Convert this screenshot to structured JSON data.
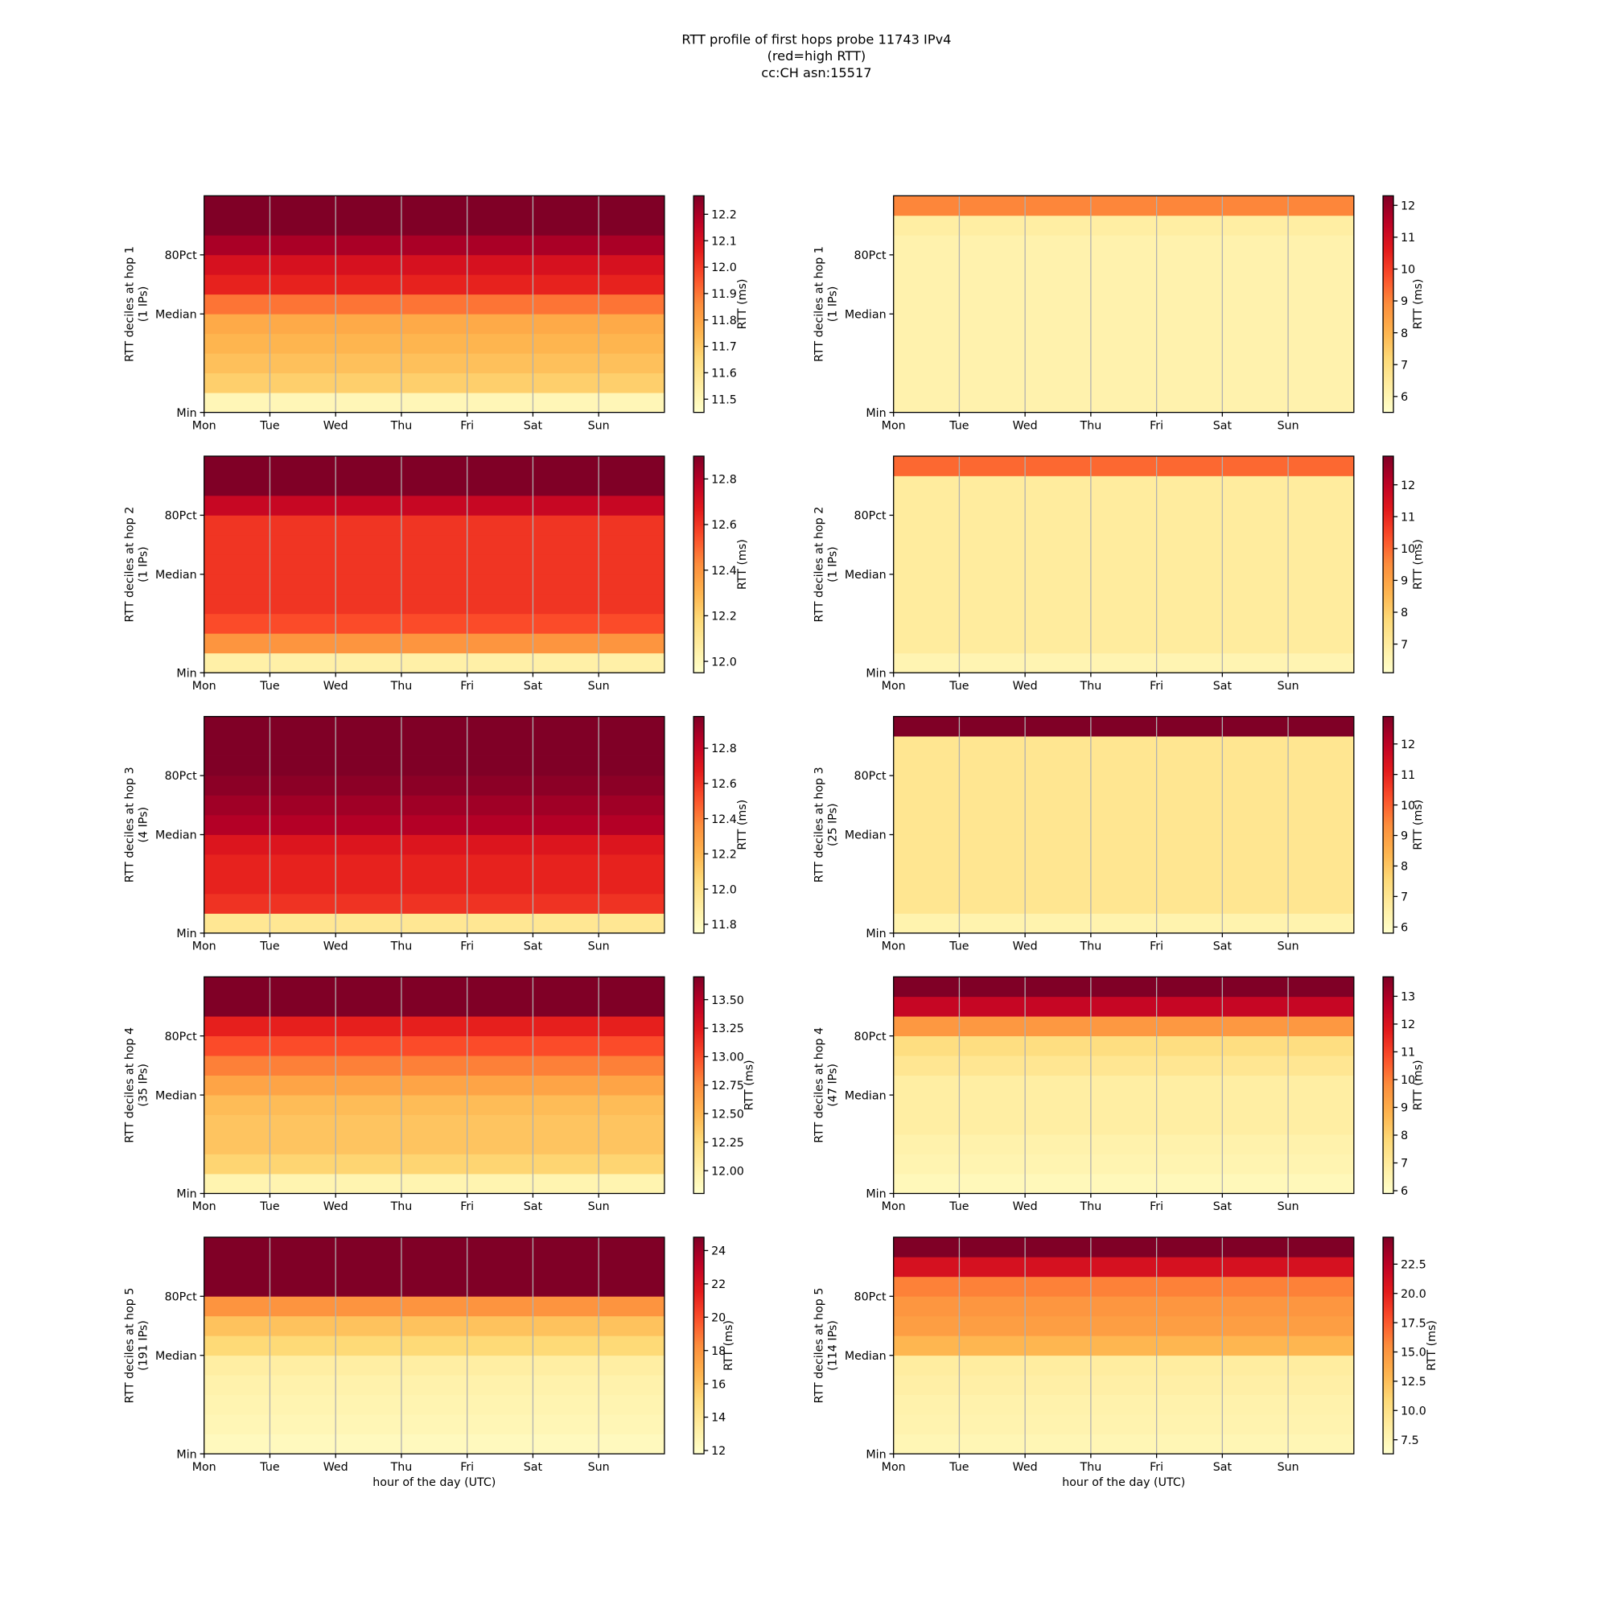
{
  "title": [
    "RTT profile of first hops probe 11743 IPv4",
    "(red=high RTT)",
    "cc:CH asn:15517"
  ],
  "chart_data": [
    {
      "type": "heatmap",
      "ylabel": [
        "RTT deciles at hop 1",
        "(1 IPs)"
      ],
      "colorbar_label": "RTT (ms)",
      "colormap": "YlOrRd",
      "values": [
        11.5,
        11.68,
        11.72,
        11.75,
        11.78,
        11.9,
        12.05,
        12.1,
        12.2,
        12.3,
        12.3
      ],
      "clim": [
        11.45,
        12.27
      ],
      "cticks": [
        11.5,
        11.6,
        11.7,
        11.8,
        11.9,
        {
          "value": 12,
          "label": "12.0"
        },
        12.1,
        12.2
      ],
      "xlim": [
        0,
        7
      ],
      "xticks": [
        {
          "value": 0,
          "label": "Mon"
        },
        {
          "value": 1,
          "label": "Tue"
        },
        {
          "value": 2,
          "label": "Wed"
        },
        {
          "value": 3,
          "label": "Thu"
        },
        {
          "value": 4,
          "label": "Fri"
        },
        {
          "value": 5,
          "label": "Sat"
        },
        {
          "value": 6,
          "label": "Sun"
        }
      ],
      "ylim": [
        0,
        11
      ],
      "yticks": [
        {
          "value": 0,
          "label": "Min"
        },
        {
          "value": 5,
          "label": "Median"
        },
        {
          "value": 8,
          "label": "80Pct"
        }
      ],
      "grid": "x"
    },
    {
      "type": "heatmap",
      "ylabel": [
        "RTT deciles at hop 2",
        "(1 IPs)"
      ],
      "colorbar_label": "RTT (ms)",
      "colormap": "YlOrRd",
      "values": [
        12.05,
        12.4,
        12.55,
        12.6,
        12.6,
        12.6,
        12.6,
        12.6,
        12.75,
        12.95,
        12.95
      ],
      "clim": [
        11.95,
        12.9
      ],
      "cticks": [
        {
          "value": 12,
          "label": "12.0"
        },
        12.2,
        12.4,
        12.6,
        12.8
      ],
      "xlim": [
        0,
        7
      ],
      "xticks": [
        {
          "value": 0,
          "label": "Mon"
        },
        {
          "value": 1,
          "label": "Tue"
        },
        {
          "value": 2,
          "label": "Wed"
        },
        {
          "value": 3,
          "label": "Thu"
        },
        {
          "value": 4,
          "label": "Fri"
        },
        {
          "value": 5,
          "label": "Sat"
        },
        {
          "value": 6,
          "label": "Sun"
        }
      ],
      "ylim": [
        0,
        11
      ],
      "yticks": [
        {
          "value": 0,
          "label": "Min"
        },
        {
          "value": 5,
          "label": "Median"
        },
        {
          "value": 8,
          "label": "80Pct"
        }
      ],
      "grid": "x"
    },
    {
      "type": "heatmap",
      "ylabel": [
        "RTT deciles at hop 3",
        "(4 IPs)"
      ],
      "colorbar_label": "RTT (ms)",
      "colormap": "YlOrRd",
      "values": [
        11.95,
        12.6,
        12.65,
        12.65,
        12.7,
        12.85,
        12.9,
        12.95,
        13,
        13,
        13
      ],
      "clim": [
        11.75,
        12.98
      ],
      "cticks": [
        11.8,
        {
          "value": 12,
          "label": "12.0"
        },
        12.2,
        12.4,
        12.6,
        12.8
      ],
      "xlim": [
        0,
        7
      ],
      "xticks": [
        {
          "value": 0,
          "label": "Mon"
        },
        {
          "value": 1,
          "label": "Tue"
        },
        {
          "value": 2,
          "label": "Wed"
        },
        {
          "value": 3,
          "label": "Thu"
        },
        {
          "value": 4,
          "label": "Fri"
        },
        {
          "value": 5,
          "label": "Sat"
        },
        {
          "value": 6,
          "label": "Sun"
        }
      ],
      "ylim": [
        0,
        11
      ],
      "yticks": [
        {
          "value": 0,
          "label": "Min"
        },
        {
          "value": 5,
          "label": "Median"
        },
        {
          "value": 8,
          "label": "80Pct"
        }
      ],
      "grid": "x"
    },
    {
      "type": "heatmap",
      "ylabel": [
        "RTT deciles at hop 4",
        "(35 IPs)"
      ],
      "colorbar_label": "RTT (ms)",
      "colormap": "YlOrRd",
      "values": [
        11.95,
        12.3,
        12.4,
        12.4,
        12.45,
        12.6,
        12.8,
        13.0,
        13.2,
        13.7,
        13.7
      ],
      "clim": [
        11.8,
        13.7
      ],
      "cticks": [
        {
          "value": 12,
          "label": "12.00"
        },
        12.25,
        {
          "value": 12.5,
          "label": "12.50"
        },
        12.75,
        {
          "value": 13,
          "label": "13.00"
        },
        13.25,
        {
          "value": 13.5,
          "label": "13.50"
        }
      ],
      "xlim": [
        0,
        7
      ],
      "xticks": [
        {
          "value": 0,
          "label": "Mon"
        },
        {
          "value": 1,
          "label": "Tue"
        },
        {
          "value": 2,
          "label": "Wed"
        },
        {
          "value": 3,
          "label": "Thu"
        },
        {
          "value": 4,
          "label": "Fri"
        },
        {
          "value": 5,
          "label": "Sat"
        },
        {
          "value": 6,
          "label": "Sun"
        }
      ],
      "ylim": [
        0,
        11
      ],
      "yticks": [
        {
          "value": 0,
          "label": "Min"
        },
        {
          "value": 5,
          "label": "Median"
        },
        {
          "value": 8,
          "label": "80Pct"
        }
      ],
      "grid": "x"
    },
    {
      "type": "heatmap",
      "ylabel": [
        "RTT deciles at hop 5",
        "(191 IPs)"
      ],
      "xlabel": "hour of the day (UTC)",
      "colorbar_label": "RTT (ms)",
      "colormap": "YlOrRd",
      "values": [
        12.3,
        12.6,
        12.8,
        13,
        13.3,
        15,
        16,
        18,
        25,
        25,
        25
      ],
      "clim": [
        11.8,
        24.8
      ],
      "cticks": [
        12,
        14,
        16,
        18,
        20,
        22,
        24
      ],
      "xlim": [
        0,
        7
      ],
      "xticks": [
        {
          "value": 0,
          "label": "Mon"
        },
        {
          "value": 1,
          "label": "Tue"
        },
        {
          "value": 2,
          "label": "Wed"
        },
        {
          "value": 3,
          "label": "Thu"
        },
        {
          "value": 4,
          "label": "Fri"
        },
        {
          "value": 5,
          "label": "Sat"
        },
        {
          "value": 6,
          "label": "Sun"
        }
      ],
      "ylim": [
        0,
        11
      ],
      "yticks": [
        {
          "value": 0,
          "label": "Min"
        },
        {
          "value": 5,
          "label": "Median"
        },
        {
          "value": 8,
          "label": "80Pct"
        }
      ],
      "grid": "x"
    },
    {
      "type": "heatmap",
      "ylabel": [
        "RTT deciles at hop 1",
        "(1 IPs)"
      ],
      "colorbar_label": "RTT (ms)",
      "colormap": "YlOrRd",
      "values": [
        6.1,
        6.1,
        6.1,
        6.1,
        6.1,
        6.1,
        6.1,
        6.1,
        6.1,
        6.3,
        9
      ],
      "clim": [
        5.5,
        12.3
      ],
      "cticks": [
        6,
        7,
        8,
        9,
        10,
        11,
        12
      ],
      "xlim": [
        0,
        7
      ],
      "xticks": [
        {
          "value": 0,
          "label": "Mon"
        },
        {
          "value": 1,
          "label": "Tue"
        },
        {
          "value": 2,
          "label": "Wed"
        },
        {
          "value": 3,
          "label": "Thu"
        },
        {
          "value": 4,
          "label": "Fri"
        },
        {
          "value": 5,
          "label": "Sat"
        },
        {
          "value": 6,
          "label": "Sun"
        }
      ],
      "ylim": [
        0,
        11
      ],
      "yticks": [
        {
          "value": 0,
          "label": "Min"
        },
        {
          "value": 5,
          "label": "Median"
        },
        {
          "value": 8,
          "label": "80Pct"
        }
      ],
      "grid": "x"
    },
    {
      "type": "heatmap",
      "ylabel": [
        "RTT deciles at hop 2",
        "(1 IPs)"
      ],
      "colorbar_label": "RTT (ms)",
      "colormap": "YlOrRd",
      "values": [
        6.6,
        7,
        7,
        7,
        7,
        7,
        7,
        7,
        7,
        7,
        10
      ],
      "clim": [
        6.1,
        12.9
      ],
      "cticks": [
        7,
        8,
        9,
        10,
        11,
        12
      ],
      "xlim": [
        0,
        7
      ],
      "xticks": [
        {
          "value": 0,
          "label": "Mon"
        },
        {
          "value": 1,
          "label": "Tue"
        },
        {
          "value": 2,
          "label": "Wed"
        },
        {
          "value": 3,
          "label": "Thu"
        },
        {
          "value": 4,
          "label": "Fri"
        },
        {
          "value": 5,
          "label": "Sat"
        },
        {
          "value": 6,
          "label": "Sun"
        }
      ],
      "ylim": [
        0,
        11
      ],
      "yticks": [
        {
          "value": 0,
          "label": "Min"
        },
        {
          "value": 5,
          "label": "Median"
        },
        {
          "value": 8,
          "label": "80Pct"
        }
      ],
      "grid": "x"
    },
    {
      "type": "heatmap",
      "ylabel": [
        "RTT deciles at hop 3",
        "(25 IPs)"
      ],
      "colorbar_label": "RTT (ms)",
      "colormap": "YlOrRd",
      "values": [
        6.4,
        7,
        7,
        7,
        7,
        7,
        7,
        7,
        7,
        7,
        13
      ],
      "clim": [
        5.8,
        12.9
      ],
      "cticks": [
        6,
        7,
        8,
        9,
        10,
        11,
        12
      ],
      "xlim": [
        0,
        7
      ],
      "xticks": [
        {
          "value": 0,
          "label": "Mon"
        },
        {
          "value": 1,
          "label": "Tue"
        },
        {
          "value": 2,
          "label": "Wed"
        },
        {
          "value": 3,
          "label": "Thu"
        },
        {
          "value": 4,
          "label": "Fri"
        },
        {
          "value": 5,
          "label": "Sat"
        },
        {
          "value": 6,
          "label": "Sun"
        }
      ],
      "ylim": [
        0,
        11
      ],
      "yticks": [
        {
          "value": 0,
          "label": "Min"
        },
        {
          "value": 5,
          "label": "Median"
        },
        {
          "value": 8,
          "label": "80Pct"
        }
      ],
      "grid": "x"
    },
    {
      "type": "heatmap",
      "ylabel": [
        "RTT deciles at hop 4",
        "(47 IPs)"
      ],
      "colorbar_label": "RTT (ms)",
      "colormap": "YlOrRd",
      "values": [
        6.3,
        6.5,
        6.6,
        6.8,
        6.8,
        6.8,
        7.2,
        7.6,
        9.5,
        12.5,
        13.7
      ],
      "clim": [
        5.9,
        13.7
      ],
      "cticks": [
        6,
        7,
        8,
        9,
        10,
        11,
        12,
        13
      ],
      "xlim": [
        0,
        7
      ],
      "xticks": [
        {
          "value": 0,
          "label": "Mon"
        },
        {
          "value": 1,
          "label": "Tue"
        },
        {
          "value": 2,
          "label": "Wed"
        },
        {
          "value": 3,
          "label": "Thu"
        },
        {
          "value": 4,
          "label": "Fri"
        },
        {
          "value": 5,
          "label": "Sat"
        },
        {
          "value": 6,
          "label": "Sun"
        }
      ],
      "ylim": [
        0,
        11
      ],
      "yticks": [
        {
          "value": 0,
          "label": "Min"
        },
        {
          "value": 5,
          "label": "Median"
        },
        {
          "value": 8,
          "label": "80Pct"
        }
      ],
      "grid": "x"
    },
    {
      "type": "heatmap",
      "ylabel": [
        "RTT deciles at hop 5",
        "(114 IPs)"
      ],
      "xlabel": "hour of the day (UTC)",
      "colorbar_label": "RTT (ms)",
      "colormap": "YlOrRd",
      "values": [
        7.5,
        7.8,
        8,
        8.3,
        8.6,
        13,
        14.5,
        15,
        16,
        21,
        25
      ],
      "clim": [
        6.3,
        24.8
      ],
      "cticks": [
        7.5,
        {
          "value": 10,
          "label": "10.0"
        },
        12.5,
        {
          "value": 15,
          "label": "15.0"
        },
        17.5,
        {
          "value": 20,
          "label": "20.0"
        },
        22.5
      ],
      "xlim": [
        0,
        7
      ],
      "xticks": [
        {
          "value": 0,
          "label": "Mon"
        },
        {
          "value": 1,
          "label": "Tue"
        },
        {
          "value": 2,
          "label": "Wed"
        },
        {
          "value": 3,
          "label": "Thu"
        },
        {
          "value": 4,
          "label": "Fri"
        },
        {
          "value": 5,
          "label": "Sat"
        },
        {
          "value": 6,
          "label": "Sun"
        }
      ],
      "ylim": [
        0,
        11
      ],
      "yticks": [
        {
          "value": 0,
          "label": "Min"
        },
        {
          "value": 5,
          "label": "Median"
        },
        {
          "value": 8,
          "label": "80Pct"
        }
      ],
      "grid": "x"
    }
  ]
}
